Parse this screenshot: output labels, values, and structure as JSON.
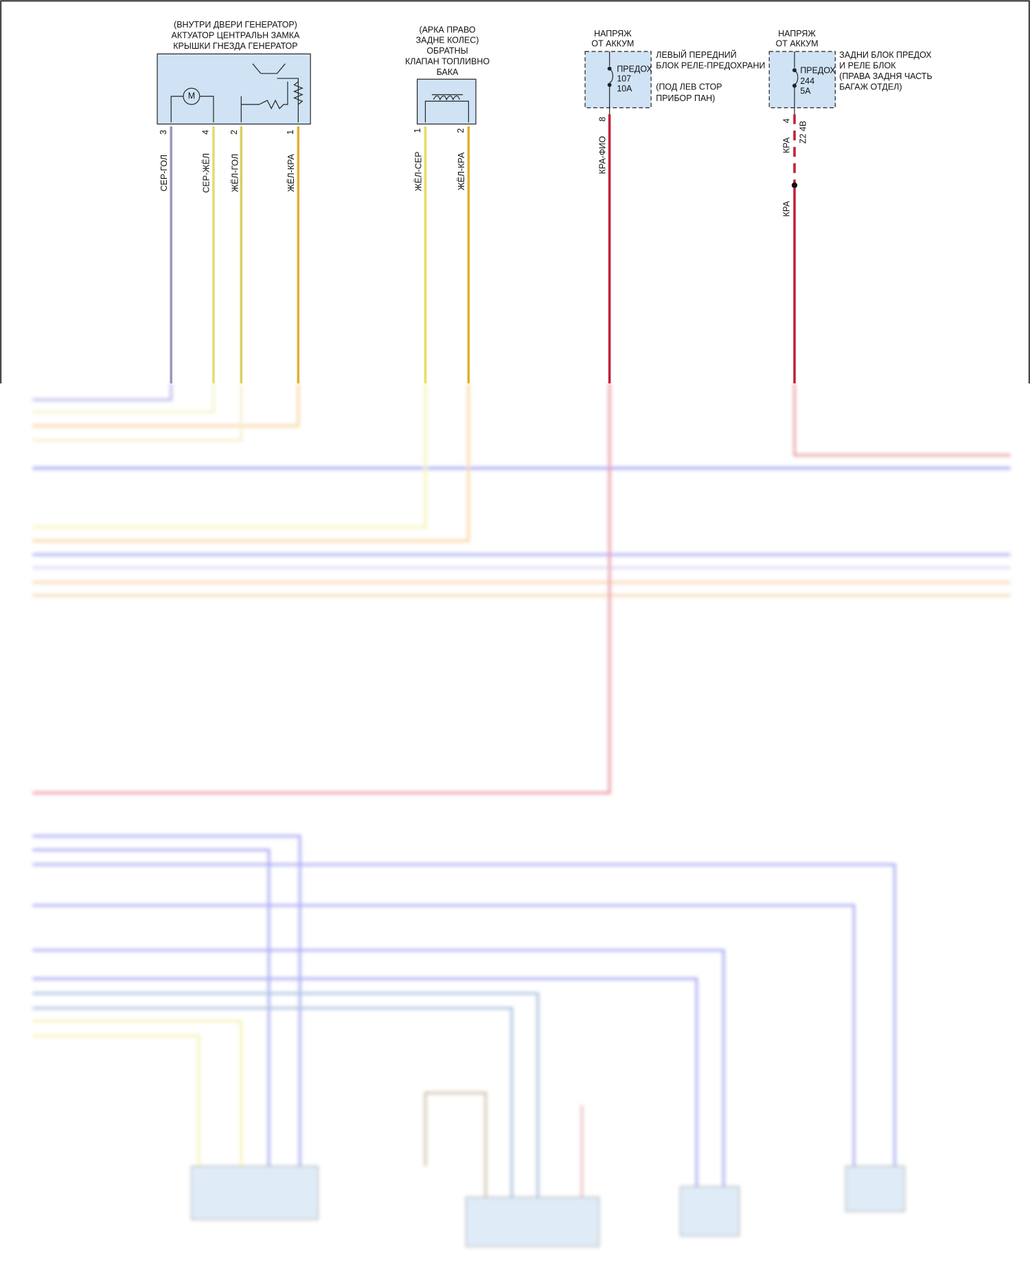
{
  "components": [
    {
      "title_lines": [
        "(ВНУТРИ ДВЕРИ ГЕНЕРАТОР)",
        "АКТУАТОР ЦЕНТРАЛЬН ЗАМКА",
        "КРЫШКИ ГНЕЗДА ГЕНЕРАТОР"
      ],
      "symbol": "M",
      "pins": [
        "3",
        "4",
        "2",
        "1"
      ],
      "wires": [
        "СЕР-ГОЛ",
        "СЕР-ЖЁЛ",
        "ЖЁЛ-ГОЛ",
        "ЖЁЛ-КРА"
      ]
    },
    {
      "title_lines": [
        "(АРКА ПРАВО",
        "ЗАДНЕ КОЛЕС)",
        "ОБРАТНЫ",
        "КЛАПАН ТОПЛИВНО",
        "БАКА"
      ],
      "pins": [
        "1",
        "2"
      ],
      "wires": [
        "ЖЁЛ-СЕР",
        "ЖЁЛ-КРА"
      ]
    }
  ],
  "fuses": [
    {
      "supply_lines": [
        "НАПРЯЖ",
        "ОТ АККУМ"
      ],
      "fuse_label": "ПРЕДОХ",
      "number": "107",
      "rating": "10A",
      "block_lines": [
        "ЛЕВЫЙ ПЕРЕДНИЙ",
        "БЛОК РЕЛЕ-ПРЕДОХРАНИ",
        "(ПОД ЛЕВ СТОР",
        "ПРИБОР ПАН)"
      ],
      "pin": "8",
      "wires": [
        "КРА-ФИО"
      ]
    },
    {
      "supply_lines": [
        "НАПРЯЖ",
        "ОТ АККУМ"
      ],
      "fuse_label": "ПРЕДОХ",
      "number": "244",
      "rating": "5A",
      "block_lines": [
        "ЗАДНИ БЛОК ПРЕДОХ",
        "И РЕЛЕ БЛОК",
        "(ПРАВА ЗАДНЯ ЧАСТЬ",
        "БАГАЖ ОТДЕЛ)"
      ],
      "pin": "4",
      "connector": "Z2 4B",
      "wires": [
        "КРА",
        "КРА"
      ]
    }
  ]
}
